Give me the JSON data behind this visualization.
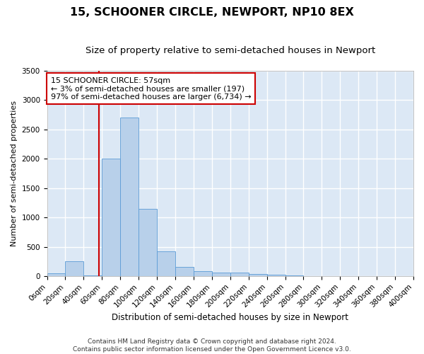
{
  "title": "15, SCHOONER CIRCLE, NEWPORT, NP10 8EX",
  "subtitle": "Size of property relative to semi-detached houses in Newport",
  "xlabel": "Distribution of semi-detached houses by size in Newport",
  "ylabel": "Number of semi-detached properties",
  "footer1": "Contains HM Land Registry data © Crown copyright and database right 2024.",
  "footer2": "Contains public sector information licensed under the Open Government Licence v3.0.",
  "annotation_title": "15 SCHOONER CIRCLE: 57sqm",
  "annotation_line1": "← 3% of semi-detached houses are smaller (197)",
  "annotation_line2": "97% of semi-detached houses are larger (6,734) →",
  "property_size": 57,
  "bar_color": "#b8d0ea",
  "bar_edge_color": "#5b9bd5",
  "vline_color": "#cc0000",
  "annotation_box_color": "#cc0000",
  "bins": [
    0,
    20,
    40,
    60,
    80,
    100,
    120,
    140,
    160,
    180,
    200,
    220,
    240,
    260,
    280,
    300,
    320,
    340,
    360,
    380,
    400
  ],
  "counts": [
    50,
    250,
    10,
    2000,
    2700,
    1150,
    420,
    155,
    80,
    60,
    60,
    35,
    20,
    8,
    5,
    3,
    2,
    2,
    1,
    1
  ],
  "ylim": [
    0,
    3500
  ],
  "yticks": [
    0,
    500,
    1000,
    1500,
    2000,
    2500,
    3000,
    3500
  ],
  "xlim": [
    0,
    400
  ],
  "background_color": "#dce8f5",
  "grid_color": "#ffffff",
  "title_fontsize": 11.5,
  "subtitle_fontsize": 9.5,
  "xlabel_fontsize": 8.5,
  "ylabel_fontsize": 8,
  "tick_fontsize": 7.5,
  "annotation_fontsize": 8,
  "footer_fontsize": 6.5
}
